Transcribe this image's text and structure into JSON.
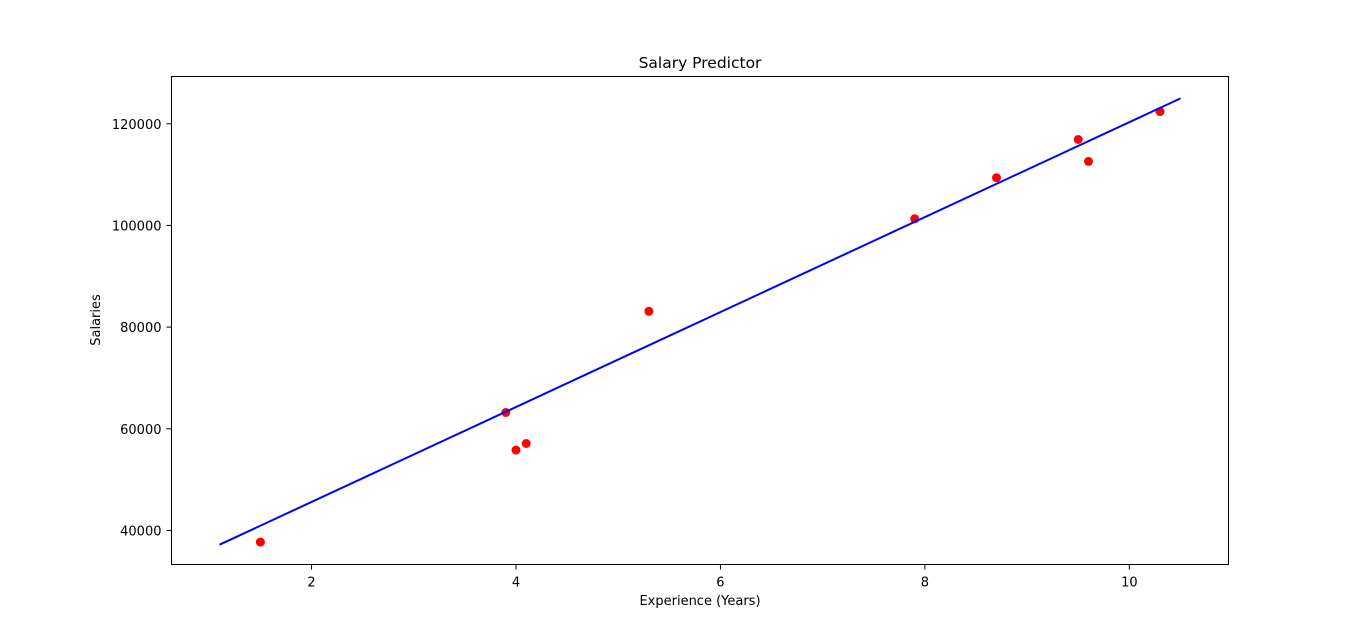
{
  "chart_data": {
    "type": "scatter",
    "title": "Salary Predictor",
    "xlabel": "Experience (Years)",
    "ylabel": "Salaries",
    "xlim": [
      0.63,
      10.97
    ],
    "ylim": [
      33300,
      129300
    ],
    "xticks": [
      2,
      4,
      6,
      8,
      10
    ],
    "yticks": [
      40000,
      60000,
      80000,
      100000,
      120000
    ],
    "grid": false,
    "series": [
      {
        "kind": "scatter",
        "color": "#ff0000",
        "points": [
          {
            "x": 1.5,
            "y": 37700
          },
          {
            "x": 3.9,
            "y": 63200
          },
          {
            "x": 4.0,
            "y": 55800
          },
          {
            "x": 4.1,
            "y": 57100
          },
          {
            "x": 5.3,
            "y": 83100
          },
          {
            "x": 7.9,
            "y": 101300
          },
          {
            "x": 8.7,
            "y": 109400
          },
          {
            "x": 9.5,
            "y": 116900
          },
          {
            "x": 9.6,
            "y": 112600
          },
          {
            "x": 10.3,
            "y": 122400
          }
        ]
      },
      {
        "kind": "line",
        "color": "#0000ff",
        "points": [
          {
            "x": 1.1,
            "y": 37200
          },
          {
            "x": 10.5,
            "y": 125000
          }
        ]
      }
    ]
  }
}
